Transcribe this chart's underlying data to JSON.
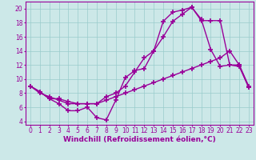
{
  "background_color": "#cce8e8",
  "grid_color": "#99cccc",
  "line_color": "#990099",
  "marker": "+",
  "markersize": 4,
  "markeredgewidth": 1.2,
  "linewidth": 1.0,
  "xlabel": "Windchill (Refroidissement éolien,°C)",
  "xlabel_fontsize": 6.5,
  "tick_fontsize": 5.5,
  "xlim": [
    -0.5,
    23.5
  ],
  "ylim": [
    3.5,
    21.0
  ],
  "yticks": [
    4,
    6,
    8,
    10,
    12,
    14,
    16,
    18,
    20
  ],
  "xticks": [
    0,
    1,
    2,
    3,
    4,
    5,
    6,
    7,
    8,
    9,
    10,
    11,
    12,
    13,
    14,
    15,
    16,
    17,
    18,
    19,
    20,
    21,
    22,
    23
  ],
  "line1_x": [
    0,
    1,
    2,
    3,
    4,
    5,
    6,
    7,
    8,
    9,
    10,
    11,
    12,
    13,
    14,
    15,
    16,
    17,
    18,
    19,
    20,
    21,
    22,
    23
  ],
  "line1_y": [
    9,
    8.2,
    7.2,
    6.5,
    5.5,
    5.5,
    6.0,
    4.5,
    4.2,
    7.0,
    10.2,
    11.2,
    11.5,
    14.0,
    18.2,
    19.5,
    19.8,
    20.2,
    18.5,
    14.2,
    11.8,
    12.0,
    12.0,
    9.0
  ],
  "line2_x": [
    0,
    1,
    2,
    3,
    4,
    5,
    6,
    7,
    8,
    9,
    10,
    11,
    12,
    13,
    14,
    15,
    16,
    17,
    18,
    19,
    20,
    21,
    22,
    23
  ],
  "line2_y": [
    9.0,
    8.0,
    7.5,
    7.0,
    6.5,
    6.5,
    6.5,
    6.5,
    7.0,
    7.5,
    8.0,
    8.5,
    9.0,
    9.5,
    10.0,
    10.5,
    11.0,
    11.5,
    12.0,
    12.5,
    13.0,
    14.0,
    12.0,
    8.8
  ],
  "line3_x": [
    0,
    1,
    2,
    3,
    4,
    5,
    6,
    7,
    8,
    9,
    10,
    11,
    12,
    13,
    14,
    15,
    16,
    17,
    18,
    19,
    20,
    21,
    22,
    23
  ],
  "line3_y": [
    9.0,
    8.2,
    7.2,
    7.2,
    6.8,
    6.5,
    6.5,
    6.5,
    7.5,
    8.0,
    9.0,
    11.0,
    13.0,
    14.0,
    16.0,
    18.2,
    19.2,
    20.2,
    18.3,
    18.3,
    18.3,
    12.0,
    11.8,
    8.8
  ]
}
